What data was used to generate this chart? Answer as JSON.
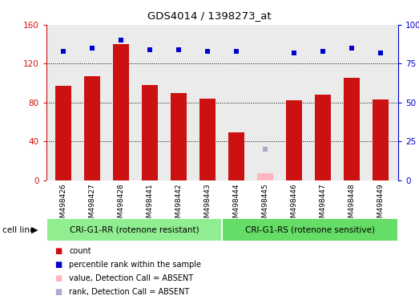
{
  "title": "GDS4014 / 1398273_at",
  "samples": [
    "GSM498426",
    "GSM498427",
    "GSM498428",
    "GSM498441",
    "GSM498442",
    "GSM498443",
    "GSM498444",
    "GSM498445",
    "GSM498446",
    "GSM498447",
    "GSM498448",
    "GSM498449"
  ],
  "count_values": [
    97,
    107,
    140,
    98,
    90,
    84,
    49,
    null,
    82,
    88,
    105,
    83
  ],
  "count_absent": [
    null,
    null,
    null,
    null,
    null,
    null,
    null,
    7,
    null,
    null,
    null,
    null
  ],
  "rank_values": [
    83,
    85,
    90,
    84,
    84,
    83,
    83,
    null,
    82,
    83,
    85,
    82
  ],
  "rank_absent": [
    null,
    null,
    null,
    null,
    null,
    null,
    null,
    20,
    null,
    null,
    null,
    null
  ],
  "group1_label": "CRI-G1-RR (rotenone resistant)",
  "group2_label": "CRI-G1-RS (rotenone sensitive)",
  "group1_indices": [
    0,
    1,
    2,
    3,
    4,
    5
  ],
  "group2_indices": [
    6,
    7,
    8,
    9,
    10,
    11
  ],
  "group1_color": "#90EE90",
  "group2_color": "#66DD66",
  "count_color": "#CC1111",
  "rank_color": "#0000CC",
  "count_absent_color": "#FFB6C1",
  "rank_absent_color": "#AAAACC",
  "ylim_left": [
    0,
    160
  ],
  "ylim_right": [
    0,
    100
  ],
  "yticks_left": [
    0,
    40,
    80,
    120,
    160
  ],
  "yticks_right": [
    0,
    25,
    50,
    75,
    100
  ],
  "ytick_labels_left": [
    "0",
    "40",
    "80",
    "120",
    "160"
  ],
  "ytick_labels_right": [
    "0",
    "25",
    "50",
    "75",
    "100%"
  ],
  "cell_line_label": "cell line",
  "legend_items": [
    {
      "label": "count",
      "color": "#CC1111"
    },
    {
      "label": "percentile rank within the sample",
      "color": "#0000CC"
    },
    {
      "label": "value, Detection Call = ABSENT",
      "color": "#FFB6C1"
    },
    {
      "label": "rank, Detection Call = ABSENT",
      "color": "#AAAACC"
    }
  ],
  "background_color": "#FFFFFF",
  "plot_bg_color": "#EBEBEB"
}
